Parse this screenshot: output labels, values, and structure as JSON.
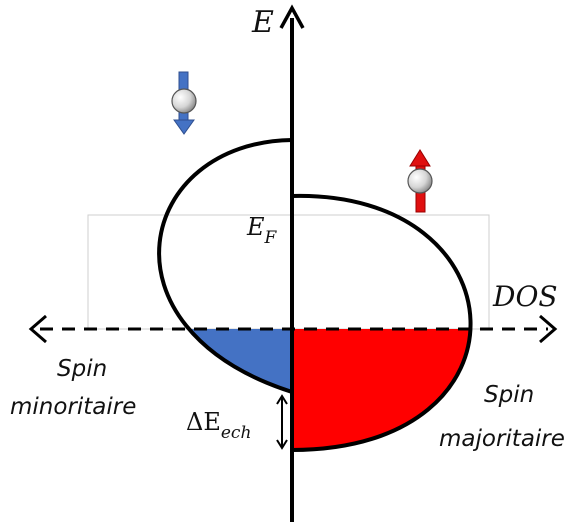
{
  "labels": {
    "energy_axis": "E",
    "dos_axis": "DOS",
    "fermi_E": "E",
    "fermi_sub": "F",
    "delta_prefix": "ΔE",
    "delta_sub": "ech",
    "minority_line1": "Spin",
    "minority_line2": "minoritaire",
    "majority_line1": "Spin",
    "majority_line2": "majoritaire"
  },
  "colors": {
    "minority_fill": "#4472c4",
    "majority_fill": "#ff0000",
    "spin_down_arrow": "#4472c4",
    "spin_up_arrow": "#e01010",
    "outline": "#000000"
  },
  "icons": {
    "spin_down": "spin-down-electron-icon",
    "spin_up": "spin-up-electron-icon"
  }
}
